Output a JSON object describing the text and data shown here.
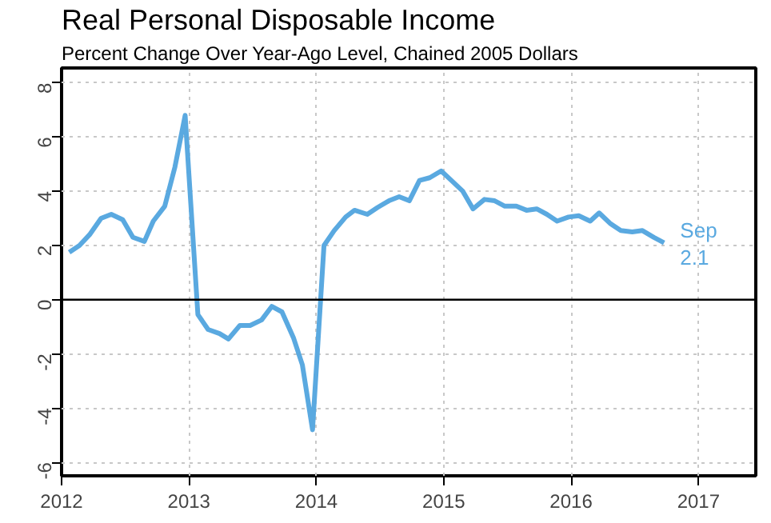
{
  "chart_data": {
    "type": "line",
    "title": "Real Personal Disposable Income",
    "subtitle": "Percent Change Over Year-Ago Level, Chained 2005 Dollars",
    "x": [
      2012.06,
      2012.14,
      2012.22,
      2012.31,
      2012.39,
      2012.48,
      2012.56,
      2012.65,
      2012.72,
      2012.81,
      2012.89,
      2012.97,
      2013.07,
      2013.15,
      2013.24,
      2013.31,
      2013.4,
      2013.48,
      2013.57,
      2013.65,
      2013.73,
      2013.82,
      2013.89,
      2013.97,
      2014.06,
      2014.14,
      2014.23,
      2014.3,
      2014.4,
      2014.48,
      2014.57,
      2014.65,
      2014.73,
      2014.81,
      2014.89,
      2014.98,
      2015.06,
      2015.15,
      2015.23,
      2015.32,
      2015.4,
      2015.48,
      2015.57,
      2015.65,
      2015.73,
      2015.81,
      2015.89,
      2015.98,
      2016.06,
      2016.15,
      2016.22,
      2016.31,
      2016.39,
      2016.48,
      2016.56,
      2016.65,
      2016.73
    ],
    "series": [
      {
        "color": "#5aa9e0",
        "values": [
          1.75,
          2.0,
          2.4,
          3.0,
          3.15,
          2.95,
          2.3,
          2.15,
          2.9,
          3.45,
          4.9,
          6.8,
          -0.55,
          -1.1,
          -1.25,
          -1.45,
          -0.95,
          -0.95,
          -0.75,
          -0.25,
          -0.45,
          -1.4,
          -2.4,
          -4.8,
          2.0,
          2.55,
          3.05,
          3.3,
          3.15,
          3.4,
          3.65,
          3.8,
          3.65,
          4.4,
          4.5,
          4.75,
          4.4,
          4.0,
          3.35,
          3.7,
          3.65,
          3.45,
          3.45,
          3.3,
          3.35,
          3.15,
          2.9,
          3.05,
          3.1,
          2.9,
          3.2,
          2.8,
          2.55,
          2.5,
          2.55,
          2.3,
          2.1
        ]
      }
    ],
    "xlim": [
      2012,
      2017.45
    ],
    "xticks": [
      2012,
      2013,
      2014,
      2015,
      2016,
      2017
    ],
    "ylim": [
      -6.5,
      8.55
    ],
    "yticks": [
      -6,
      -4,
      -2,
      0,
      2,
      4,
      6,
      8
    ],
    "grid": true,
    "line_style": "solid",
    "marker": "none",
    "ref_lines": [
      {
        "axis": "y",
        "value": 0,
        "color": "#000000"
      }
    ],
    "annotations": [
      {
        "text": "Sep",
        "x": 2016.73,
        "y": 2.1
      },
      {
        "text": "2.1",
        "x": 2016.73,
        "y": 2.1
      }
    ]
  }
}
